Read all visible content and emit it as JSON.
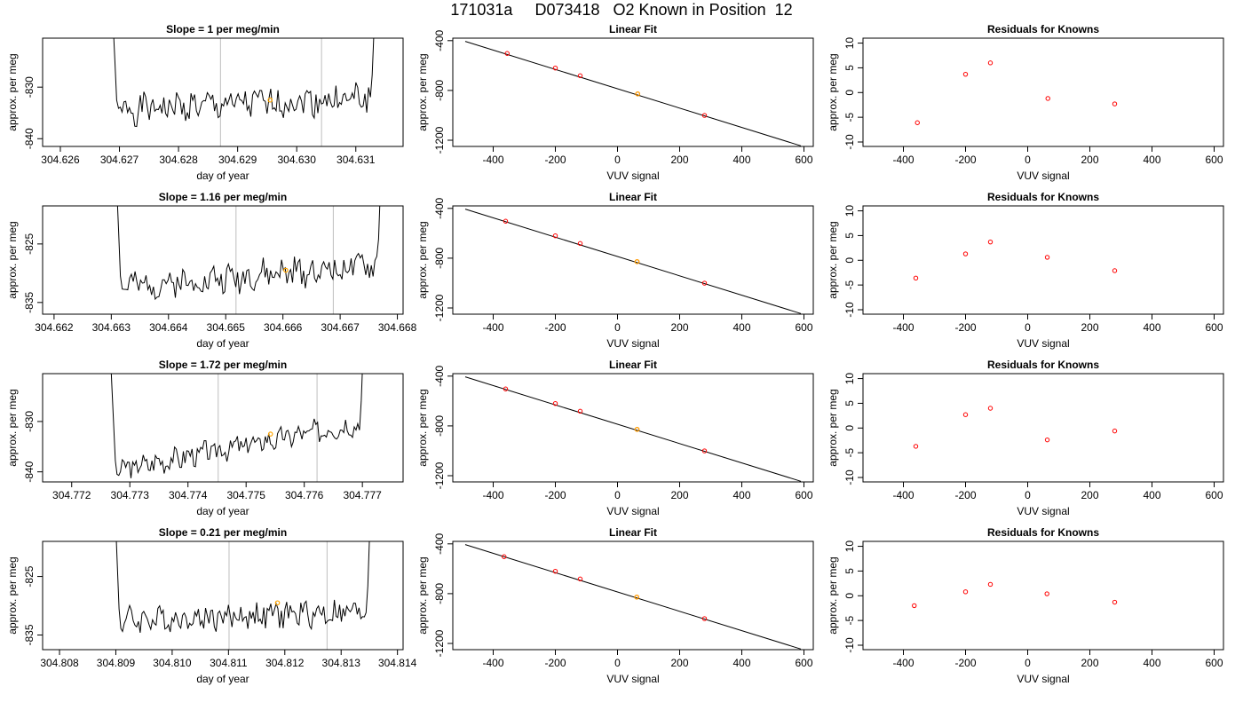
{
  "page_title": "171031a     D073418   O2 Known in Position  12",
  "colors": {
    "trace": "#000000",
    "marker_vline": "#bebebe",
    "highlight": "#ffa500",
    "known_point": "#ff0000",
    "residual_point": "#ff0000",
    "fit_line": "#000000"
  },
  "chart_data": [
    {
      "type": "line",
      "panel": "row1-timeseries",
      "title": "Slope =  1  per meg/min",
      "xlabel": "day of year",
      "ylabel": "approx. per meg",
      "xlim": [
        304.6257,
        304.6318
      ],
      "ylim": [
        -841.5,
        -820.5
      ],
      "xticks": [
        304.626,
        304.627,
        304.628,
        304.629,
        304.63,
        304.631
      ],
      "xtick_labels": [
        "304.626",
        "304.627",
        "304.628",
        "304.629",
        "304.630",
        "304.631"
      ],
      "yticks": [
        -830,
        -840
      ],
      "ytick_labels": [
        "-830",
        "-840"
      ],
      "trace": {
        "x_start": 304.6268,
        "x_end": 304.6314,
        "level_start": -834.5,
        "level_end": -832.0,
        "amplitude": 2.6,
        "seed": 1
      },
      "vlines": [
        304.62871,
        304.63042
      ],
      "highlight_point": {
        "x": 304.62955,
        "y": -832.5
      }
    },
    {
      "type": "line",
      "panel": "row2-timeseries",
      "title": "Slope =  1.16  per meg/min",
      "xlabel": "day of year",
      "ylabel": "approx. per meg",
      "xlim": [
        304.6618,
        304.6681
      ],
      "ylim": [
        -837.0,
        -818.5
      ],
      "xticks": [
        304.662,
        304.663,
        304.664,
        304.665,
        304.666,
        304.667,
        304.668
      ],
      "xtick_labels": [
        "304.662",
        "304.663",
        "304.664",
        "304.665",
        "304.666",
        "304.667",
        "304.668"
      ],
      "yticks": [
        -825,
        -835
      ],
      "ytick_labels": [
        "-825",
        "-835"
      ],
      "trace": {
        "x_start": 304.663,
        "x_end": 304.6678,
        "level_start": -832.5,
        "level_end": -828.5,
        "amplitude": 2.2,
        "seed": 2
      },
      "vlines": [
        304.66518,
        304.66688
      ],
      "highlight_point": {
        "x": 304.66605,
        "y": -829.5
      }
    },
    {
      "type": "line",
      "panel": "row3-timeseries",
      "title": "Slope =  1.72  per meg/min",
      "xlabel": "day of year",
      "ylabel": "approx. per meg",
      "xlim": [
        304.7715,
        304.7777
      ],
      "ylim": [
        -842.0,
        -820.5
      ],
      "xticks": [
        304.772,
        304.773,
        304.774,
        304.775,
        304.776,
        304.777
      ],
      "xtick_labels": [
        "304.772",
        "304.773",
        "304.774",
        "304.775",
        "304.776",
        "304.777"
      ],
      "yticks": [
        -830,
        -840
      ],
      "ytick_labels": [
        "-830",
        "-840"
      ],
      "trace": {
        "x_start": 304.7726,
        "x_end": 304.7771,
        "level_start": -840.0,
        "level_end": -830.0,
        "amplitude": 2.0,
        "seed": 3
      },
      "vlines": [
        304.77452,
        304.77622
      ],
      "highlight_point": {
        "x": 304.77542,
        "y": -832.5
      }
    },
    {
      "type": "line",
      "panel": "row4-timeseries",
      "title": "Slope =  0.21  per meg/min",
      "xlabel": "day of year",
      "ylabel": "approx. per meg",
      "xlim": [
        304.8077,
        304.8141
      ],
      "ylim": [
        -837.5,
        -819.0
      ],
      "xticks": [
        304.808,
        304.809,
        304.81,
        304.811,
        304.812,
        304.813,
        304.814
      ],
      "xtick_labels": [
        "304.808",
        "304.809",
        "304.810",
        "304.811",
        "304.812",
        "304.813",
        "304.814"
      ],
      "yticks": [
        -825,
        -835
      ],
      "ytick_labels": [
        "-825",
        "-835"
      ],
      "trace": {
        "x_start": 304.8089,
        "x_end": 304.8136,
        "level_start": -832.5,
        "level_end": -831.0,
        "amplitude": 2.0,
        "seed": 4
      },
      "vlines": [
        304.81101,
        304.81275
      ],
      "highlight_point": {
        "x": 304.81187,
        "y": -829.5
      }
    },
    {
      "type": "scatter",
      "panel": "row1-fit",
      "title": "Linear Fit",
      "xlabel": "VUV signal",
      "ylabel": "approx. per meg",
      "xlim": [
        -530,
        630
      ],
      "ylim": [
        -1250,
        -380
      ],
      "xticks": [
        -400,
        -200,
        0,
        200,
        400,
        600
      ],
      "xtick_labels": [
        "-400",
        "-200",
        "0",
        "200",
        "400",
        "600"
      ],
      "yticks": [
        -400,
        -800,
        -1200
      ],
      "ytick_labels": [
        "-400",
        "-800",
        "-1200"
      ],
      "points": [
        [
          -355,
          -503
        ],
        [
          -200,
          -620
        ],
        [
          -120,
          -682
        ],
        [
          65,
          -828
        ],
        [
          280,
          -1001
        ]
      ],
      "highlight_point": {
        "x": 65,
        "y": -828
      },
      "fit_line": {
        "x": [
          -490,
          590
        ],
        "y": [
          -406,
          -1245
        ]
      }
    },
    {
      "type": "scatter",
      "panel": "row2-fit",
      "title": "Linear Fit",
      "xlabel": "VUV signal",
      "ylabel": "approx. per meg",
      "xlim": [
        -530,
        630
      ],
      "ylim": [
        -1250,
        -380
      ],
      "xticks": [
        -400,
        -200,
        0,
        200,
        400,
        600
      ],
      "xtick_labels": [
        "-400",
        "-200",
        "0",
        "200",
        "400",
        "600"
      ],
      "yticks": [
        -400,
        -800,
        -1200
      ],
      "ytick_labels": [
        "-400",
        "-800",
        "-1200"
      ],
      "points": [
        [
          -360,
          -503
        ],
        [
          -200,
          -620
        ],
        [
          -120,
          -682
        ],
        [
          63,
          -828
        ],
        [
          280,
          -1001
        ]
      ],
      "highlight_point": {
        "x": 63,
        "y": -828
      },
      "fit_line": {
        "x": [
          -490,
          590
        ],
        "y": [
          -406,
          -1245
        ]
      }
    },
    {
      "type": "scatter",
      "panel": "row3-fit",
      "title": "Linear Fit",
      "xlabel": "VUV signal",
      "ylabel": "approx. per meg",
      "xlim": [
        -530,
        630
      ],
      "ylim": [
        -1250,
        -380
      ],
      "xticks": [
        -400,
        -200,
        0,
        200,
        400,
        600
      ],
      "xtick_labels": [
        "-400",
        "-200",
        "0",
        "200",
        "400",
        "600"
      ],
      "yticks": [
        -400,
        -800,
        -1200
      ],
      "ytick_labels": [
        "-400",
        "-800",
        "-1200"
      ],
      "points": [
        [
          -360,
          -503
        ],
        [
          -200,
          -620
        ],
        [
          -120,
          -682
        ],
        [
          63,
          -828
        ],
        [
          280,
          -1001
        ]
      ],
      "highlight_point": {
        "x": 63,
        "y": -828
      },
      "fit_line": {
        "x": [
          -490,
          590
        ],
        "y": [
          -406,
          -1245
        ]
      }
    },
    {
      "type": "scatter",
      "panel": "row4-fit",
      "title": "Linear Fit",
      "xlabel": "VUV signal",
      "ylabel": "approx. per meg",
      "xlim": [
        -530,
        630
      ],
      "ylim": [
        -1250,
        -380
      ],
      "xticks": [
        -400,
        -200,
        0,
        200,
        400,
        600
      ],
      "xtick_labels": [
        "-400",
        "-200",
        "0",
        "200",
        "400",
        "600"
      ],
      "yticks": [
        -400,
        -800,
        -1200
      ],
      "ytick_labels": [
        "-400",
        "-800",
        "-1200"
      ],
      "points": [
        [
          -365,
          -503
        ],
        [
          -200,
          -620
        ],
        [
          -120,
          -682
        ],
        [
          62,
          -828
        ],
        [
          280,
          -1001
        ]
      ],
      "highlight_point": {
        "x": 62,
        "y": -828
      },
      "fit_line": {
        "x": [
          -490,
          590
        ],
        "y": [
          -406,
          -1245
        ]
      }
    },
    {
      "type": "scatter",
      "panel": "row1-residuals",
      "title": "Residuals for Knowns",
      "xlabel": "VUV signal",
      "ylabel": "approx. per meg",
      "xlim": [
        -530,
        630
      ],
      "ylim": [
        -10.9,
        11.0
      ],
      "xticks": [
        -400,
        -200,
        0,
        200,
        400,
        600
      ],
      "xtick_labels": [
        "-400",
        "-200",
        "0",
        "200",
        "400",
        "600"
      ],
      "yticks": [
        10,
        5,
        0,
        -5,
        -10
      ],
      "ytick_labels": [
        "10",
        "5",
        "0",
        "-5",
        "-10"
      ],
      "points": [
        [
          -355,
          -6.1
        ],
        [
          -200,
          3.7
        ],
        [
          -120,
          6.0
        ],
        [
          65,
          -1.2
        ],
        [
          280,
          -2.3
        ]
      ]
    },
    {
      "type": "scatter",
      "panel": "row2-residuals",
      "title": "Residuals for Knowns",
      "xlabel": "VUV signal",
      "ylabel": "approx. per meg",
      "xlim": [
        -530,
        630
      ],
      "ylim": [
        -10.9,
        11.0
      ],
      "xticks": [
        -400,
        -200,
        0,
        200,
        400,
        600
      ],
      "xtick_labels": [
        "-400",
        "-200",
        "0",
        "200",
        "400",
        "600"
      ],
      "yticks": [
        10,
        5,
        0,
        -5,
        -10
      ],
      "ytick_labels": [
        "10",
        "5",
        "0",
        "-5",
        "-10"
      ],
      "points": [
        [
          -360,
          -3.6
        ],
        [
          -200,
          1.3
        ],
        [
          -120,
          3.7
        ],
        [
          63,
          0.6
        ],
        [
          280,
          -2.1
        ]
      ]
    },
    {
      "type": "scatter",
      "panel": "row3-residuals",
      "title": "Residuals for Knowns",
      "xlabel": "VUV signal",
      "ylabel": "approx. per meg",
      "xlim": [
        -530,
        630
      ],
      "ylim": [
        -10.9,
        11.0
      ],
      "xticks": [
        -400,
        -200,
        0,
        200,
        400,
        600
      ],
      "xtick_labels": [
        "-400",
        "-200",
        "0",
        "200",
        "400",
        "600"
      ],
      "yticks": [
        10,
        5,
        0,
        -5,
        -10
      ],
      "ytick_labels": [
        "10",
        "5",
        "0",
        "-5",
        "-10"
      ],
      "points": [
        [
          -360,
          -3.7
        ],
        [
          -200,
          2.7
        ],
        [
          -120,
          4.0
        ],
        [
          63,
          -2.4
        ],
        [
          280,
          -0.6
        ]
      ]
    },
    {
      "type": "scatter",
      "panel": "row4-residuals",
      "title": "Residuals for Knowns",
      "xlabel": "VUV signal",
      "ylabel": "approx. per meg",
      "xlim": [
        -530,
        630
      ],
      "ylim": [
        -10.9,
        11.0
      ],
      "xticks": [
        -400,
        -200,
        0,
        200,
        400,
        600
      ],
      "xtick_labels": [
        "-400",
        "-200",
        "0",
        "200",
        "400",
        "600"
      ],
      "yticks": [
        10,
        5,
        0,
        -5,
        -10
      ],
      "ytick_labels": [
        "10",
        "5",
        "0",
        "-5",
        "-10"
      ],
      "points": [
        [
          -365,
          -2.0
        ],
        [
          -200,
          0.8
        ],
        [
          -120,
          2.3
        ],
        [
          62,
          0.4
        ],
        [
          280,
          -1.3
        ]
      ]
    }
  ]
}
